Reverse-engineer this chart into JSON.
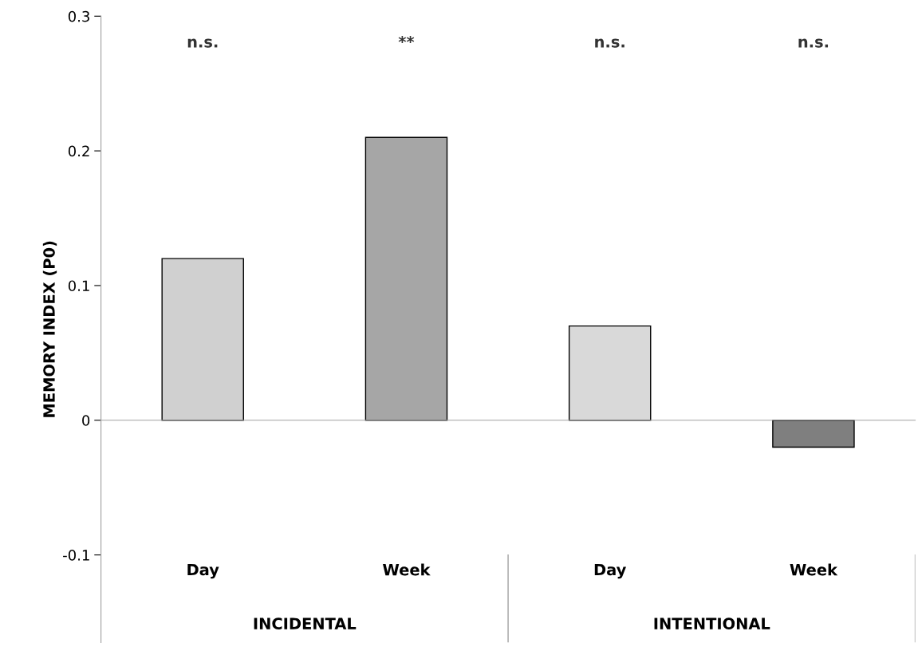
{
  "chart_data": {
    "type": "bar",
    "ylabel": "MEMORY INDEX (P0)",
    "categories": [
      "Day",
      "Week",
      "Day",
      "Week"
    ],
    "values": [
      0.12,
      0.21,
      0.07,
      -0.02
    ],
    "colors": [
      "#d0d0d0",
      "#a6a6a6",
      "#d9d9d9",
      "#7f7f7f"
    ],
    "ylim": [
      -0.165,
      0.3
    ],
    "yticks": [
      -0.1,
      0,
      0.1,
      0.2,
      0.3
    ],
    "annotations": [
      "n.s.",
      "**",
      "n.s.",
      "n.s.",
      "INCIDENTAL",
      "INTENTIONAL"
    ],
    "legend": false
  }
}
